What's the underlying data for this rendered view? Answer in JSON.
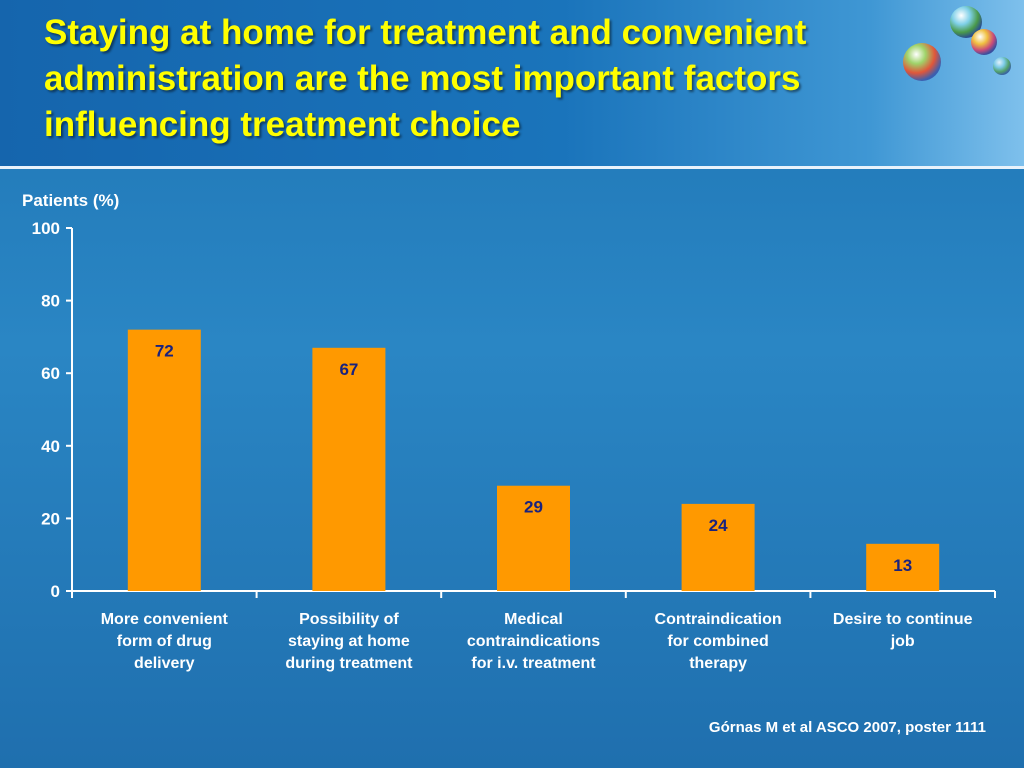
{
  "slide": {
    "title": "Staying at home for treatment and convenient administration are the most important factors influencing treatment choice",
    "citation": "Górnas M et al ASCO 2007, poster 1111"
  },
  "colors": {
    "title": "#ffff00",
    "bar": "#ff9900",
    "data_label": "#1a237e",
    "axis_text": "#ffffff"
  },
  "chart_data": {
    "type": "bar",
    "ylabel": "Patients (%)",
    "ylim": [
      0,
      100
    ],
    "yticks": [
      "0",
      "20",
      "40",
      "60",
      "80",
      "100"
    ],
    "categories": [
      [
        "More convenient",
        "form of drug",
        "delivery"
      ],
      [
        "Possibility of",
        "staying at home",
        "during treatment"
      ],
      [
        "Medical",
        "contraindications",
        "for i.v. treatment"
      ],
      [
        "Contraindication",
        "for combined",
        "therapy"
      ],
      [
        "Desire to continue",
        "job"
      ]
    ],
    "values": [
      72,
      67,
      29,
      24,
      13
    ],
    "data_labels": [
      "72",
      "67",
      "29",
      "24",
      "13"
    ],
    "grid": false,
    "legend": "none"
  }
}
